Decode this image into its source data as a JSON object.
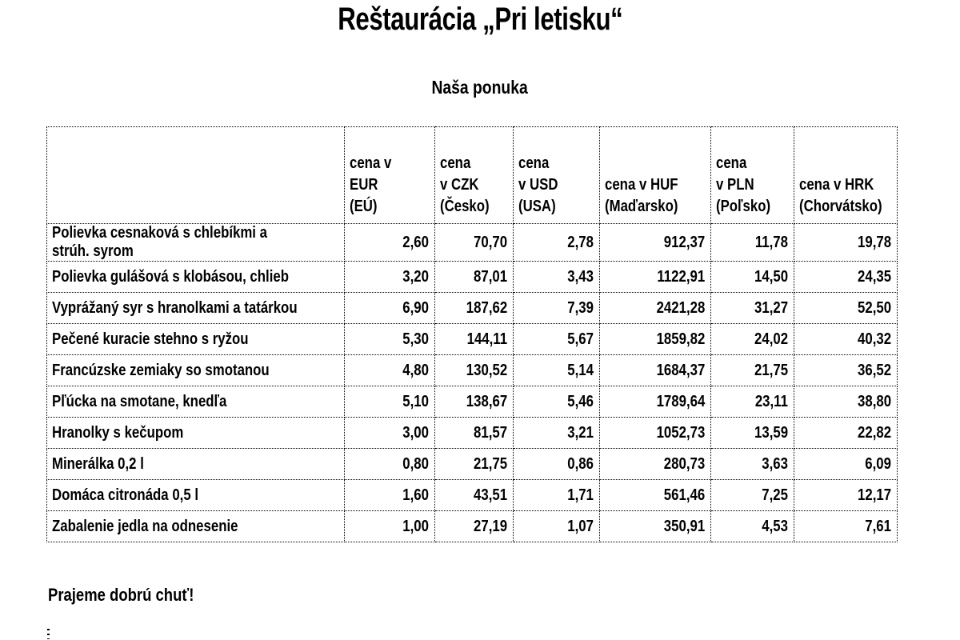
{
  "page": {
    "title": "Reštaurácia „Pri letisku“",
    "subtitle": "Naša ponuka",
    "footer": "Prajeme dobrú chuť!"
  },
  "table": {
    "type": "table",
    "headers": [
      "",
      "cena v EUR\n(EÚ)",
      "cena\nv CZK\n(Česko)",
      "cena\nv USD\n(USA)",
      "cena v HUF\n(Maďarsko)",
      "cena\nv PLN\n(Poľsko)",
      "cena v HRK\n(Chorvátsko)"
    ],
    "rows": [
      {
        "name": "Polievka cesnaková s chlebíkmi a strúh. syrom",
        "prices": [
          "2,60",
          "70,70",
          "2,78",
          "912,37",
          "11,78",
          "19,78"
        ]
      },
      {
        "name": "Polievka gulášová s klobásou, chlieb",
        "prices": [
          "3,20",
          "87,01",
          "3,43",
          "1122,91",
          "14,50",
          "24,35"
        ]
      },
      {
        "name": "Vyprážaný syr s hranolkami a tatárkou",
        "prices": [
          "6,90",
          "187,62",
          "7,39",
          "2421,28",
          "31,27",
          "52,50"
        ]
      },
      {
        "name": "Pečené kuracie stehno s ryžou",
        "prices": [
          "5,30",
          "144,11",
          "5,67",
          "1859,82",
          "24,02",
          "40,32"
        ]
      },
      {
        "name": "Francúzske zemiaky so smotanou",
        "prices": [
          "4,80",
          "130,52",
          "5,14",
          "1684,37",
          "21,75",
          "36,52"
        ]
      },
      {
        "name": "Pľúcka na smotane, knedľa",
        "prices": [
          "5,10",
          "138,67",
          "5,46",
          "1789,64",
          "23,11",
          "38,80"
        ]
      },
      {
        "name": "Hranolky s kečupom",
        "prices": [
          "3,00",
          "81,57",
          "3,21",
          "1052,73",
          "13,59",
          "22,82"
        ]
      },
      {
        "name": "Minerálka 0,2 l",
        "prices": [
          "0,80",
          "21,75",
          "0,86",
          "280,73",
          "3,63",
          "6,09"
        ]
      },
      {
        "name": "Domáca citronáda 0,5 l",
        "prices": [
          "1,60",
          "43,51",
          "1,71",
          "561,46",
          "7,25",
          "12,17"
        ]
      },
      {
        "name": "Zabalenie jedla na odnesenie",
        "prices": [
          "1,00",
          "27,19",
          "1,07",
          "350,91",
          "4,53",
          "7,61"
        ]
      }
    ]
  }
}
